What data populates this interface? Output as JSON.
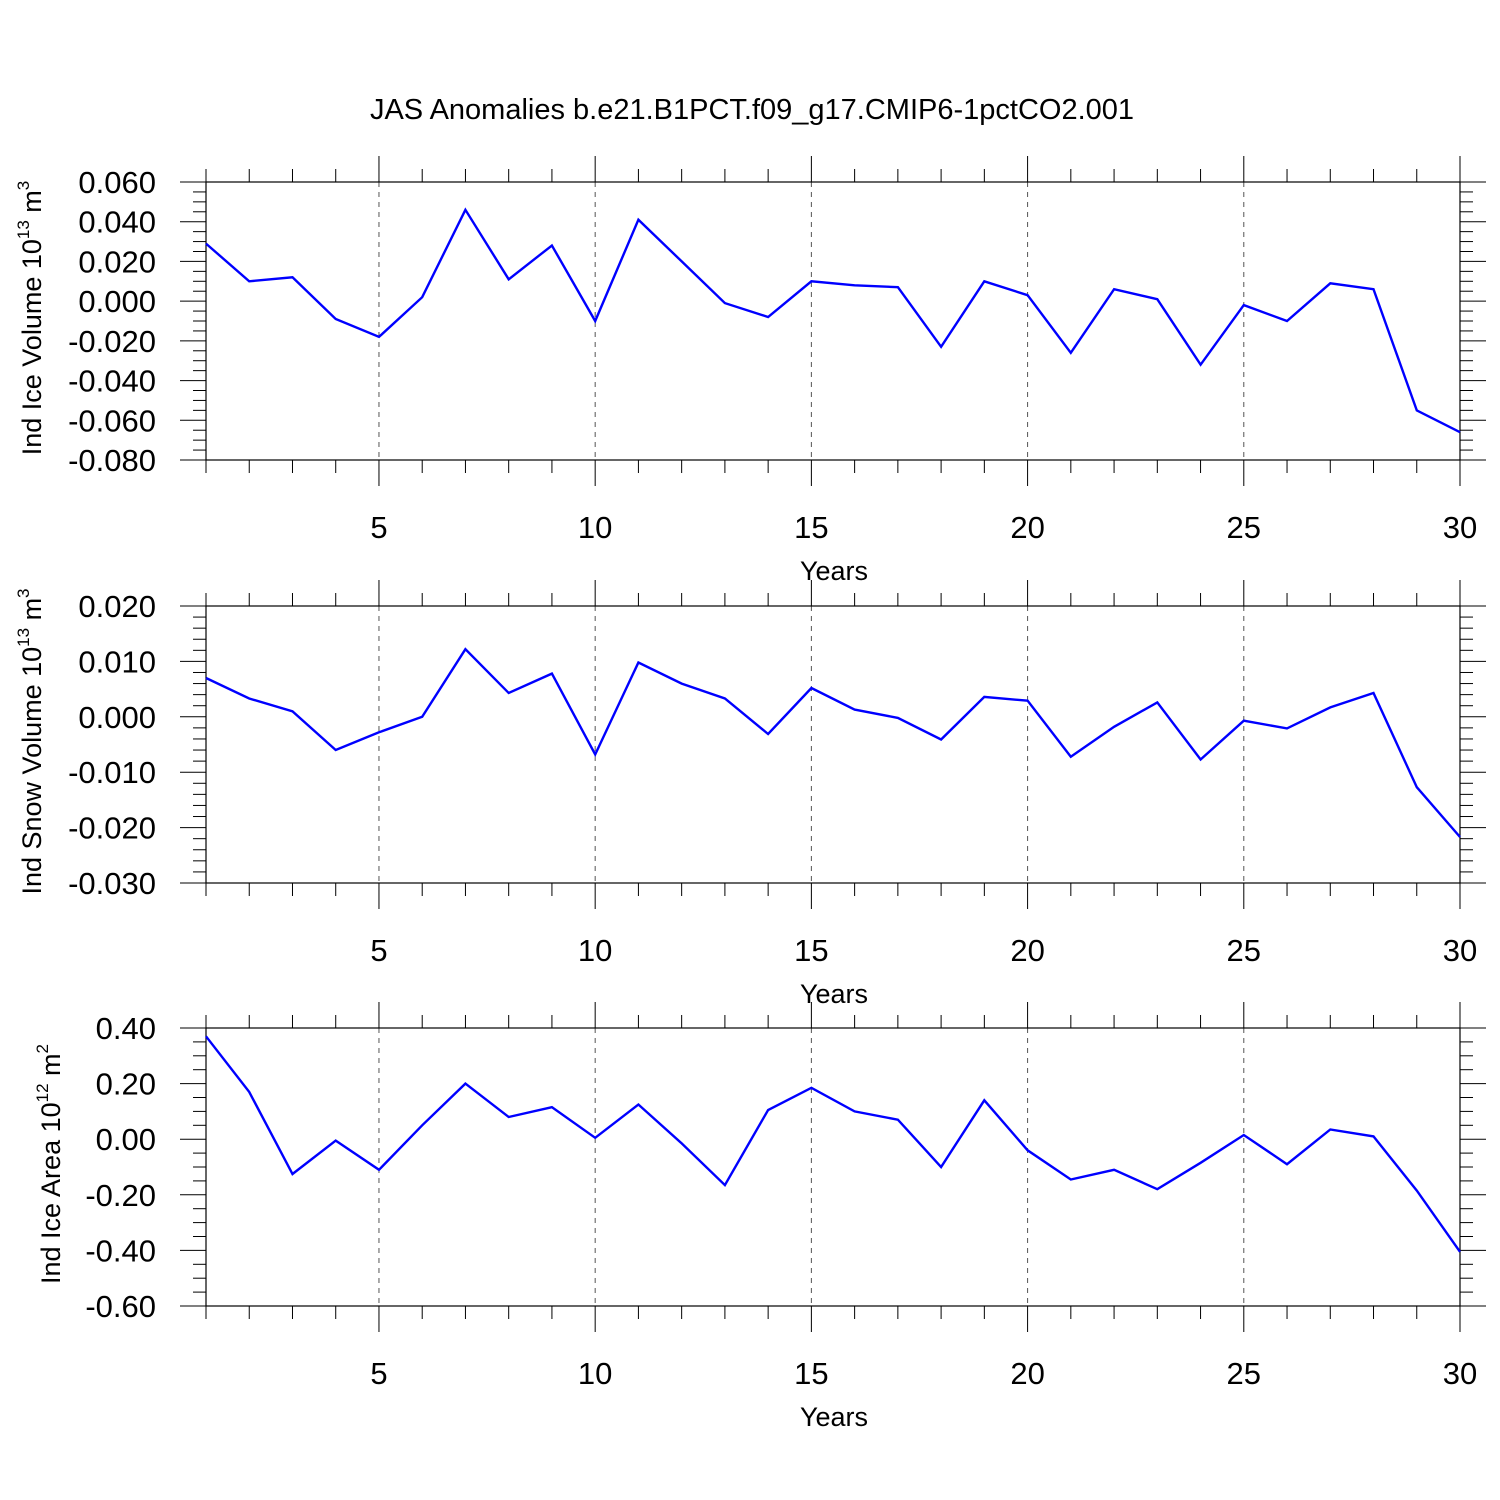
{
  "figure": {
    "title": "JAS Anomalies b.e21.B1PCT.f09_g17.CMIP6-1pctCO2.001"
  },
  "chart_data": [
    {
      "type": "line",
      "xlabel": "Years",
      "ylabel": {
        "text": "Ind Ice Volume 10",
        "sup": "13",
        "unit": " m",
        "unit_sup": "3"
      },
      "xlim": [
        1,
        30
      ],
      "ylim": [
        -0.08,
        0.06
      ],
      "xticks": [
        5,
        10,
        15,
        20,
        25,
        30
      ],
      "yticks": [
        0.06,
        0.04,
        0.02,
        0.0,
        -0.02,
        -0.04,
        -0.06,
        -0.08
      ],
      "ytick_labels": [
        "0.060",
        "0.040",
        "0.020",
        "0.000",
        "-0.020",
        "-0.040",
        "-0.060",
        "-0.080"
      ],
      "x_minor_step": 1,
      "y_minor_step": 0.005,
      "grid": "vertical dashed at major x ticks",
      "color": "#0000ff",
      "x": [
        1,
        2,
        3,
        4,
        5,
        6,
        7,
        8,
        9,
        10,
        11,
        12,
        13,
        14,
        15,
        16,
        17,
        18,
        19,
        20,
        21,
        22,
        23,
        24,
        25,
        26,
        27,
        28,
        29,
        30
      ],
      "values": [
        0.029,
        0.01,
        0.012,
        -0.009,
        -0.018,
        0.002,
        0.046,
        0.011,
        0.028,
        -0.01,
        0.041,
        0.02,
        -0.001,
        -0.008,
        0.01,
        0.008,
        0.007,
        -0.023,
        0.01,
        0.003,
        -0.026,
        0.006,
        0.001,
        -0.032,
        -0.002,
        -0.01,
        0.009,
        0.006,
        -0.055,
        -0.066
      ]
    },
    {
      "type": "line",
      "xlabel": "Years",
      "ylabel": {
        "text": "Ind Snow Volume 10",
        "sup": "13",
        "unit": " m",
        "unit_sup": "3"
      },
      "xlim": [
        1,
        30
      ],
      "ylim": [
        -0.03,
        0.02
      ],
      "xticks": [
        5,
        10,
        15,
        20,
        25,
        30
      ],
      "yticks": [
        0.02,
        0.01,
        0.0,
        -0.01,
        -0.02,
        -0.03
      ],
      "ytick_labels": [
        "0.020",
        "0.010",
        "0.000",
        "-0.010",
        "-0.020",
        "-0.030"
      ],
      "x_minor_step": 1,
      "y_minor_step": 0.002,
      "grid": "vertical dashed at major x ticks",
      "color": "#0000ff",
      "x": [
        1,
        2,
        3,
        4,
        5,
        6,
        7,
        8,
        9,
        10,
        11,
        12,
        13,
        14,
        15,
        16,
        17,
        18,
        19,
        20,
        21,
        22,
        23,
        24,
        25,
        26,
        27,
        28,
        29,
        30
      ],
      "values": [
        0.007,
        0.0033,
        0.001,
        -0.006,
        -0.0028,
        0.0,
        0.0122,
        0.0043,
        0.0078,
        -0.0068,
        0.0098,
        0.006,
        0.0033,
        -0.0031,
        0.0052,
        0.0013,
        -0.0002,
        -0.0041,
        0.0036,
        0.0029,
        -0.0072,
        -0.0018,
        0.0026,
        -0.0077,
        -0.0007,
        -0.0021,
        0.0017,
        0.0043,
        -0.0127,
        -0.0217
      ]
    },
    {
      "type": "line",
      "xlabel": "Years",
      "ylabel": {
        "text": "Ind Ice Area 10",
        "sup": "12",
        "unit": " m",
        "unit_sup": "2"
      },
      "xlim": [
        1,
        30
      ],
      "ylim": [
        -0.6,
        0.4
      ],
      "xticks": [
        5,
        10,
        15,
        20,
        25,
        30
      ],
      "yticks": [
        0.4,
        0.2,
        0.0,
        -0.2,
        -0.4,
        -0.6
      ],
      "ytick_labels": [
        "0.40",
        "0.20",
        "0.00",
        "-0.20",
        "-0.40",
        "-0.60"
      ],
      "x_minor_step": 1,
      "y_minor_step": 0.05,
      "grid": "vertical dashed at major x ticks",
      "color": "#0000ff",
      "x": [
        1,
        2,
        3,
        4,
        5,
        6,
        7,
        8,
        9,
        10,
        11,
        12,
        13,
        14,
        15,
        16,
        17,
        18,
        19,
        20,
        21,
        22,
        23,
        24,
        25,
        26,
        27,
        28,
        29,
        30
      ],
      "values": [
        0.37,
        0.17,
        -0.125,
        -0.005,
        -0.11,
        0.05,
        0.2,
        0.08,
        0.115,
        0.005,
        0.125,
        -0.015,
        -0.165,
        0.105,
        0.185,
        0.1,
        0.07,
        -0.1,
        0.14,
        -0.04,
        -0.145,
        -0.11,
        -0.18,
        -0.085,
        0.015,
        -0.09,
        0.035,
        0.01,
        -0.185,
        -0.405
      ]
    }
  ]
}
